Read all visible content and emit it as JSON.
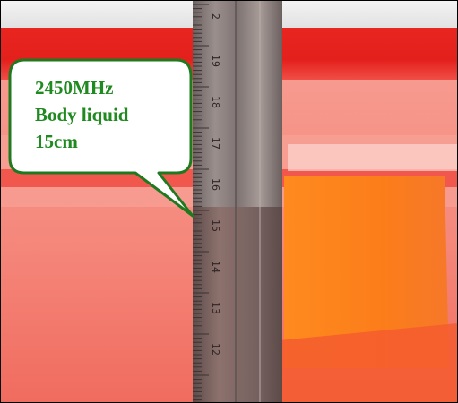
{
  "callout": {
    "lines": [
      "2450MHz",
      "Body liquid",
      "15cm"
    ]
  },
  "ruler": {
    "tick_labels": [
      "2",
      "19",
      "18",
      "17",
      "16",
      "15",
      "14",
      "13",
      "12"
    ]
  },
  "colors": {
    "callout_text": "#1f8a1f",
    "callout_border": "#1f7a1f",
    "callout_fill": "#ffffff",
    "liquid_pink": "#f47f73",
    "liquid_orange": "#f97f1d",
    "container_red": "#e5231f",
    "ruler_steel": "#8a7f7e"
  }
}
